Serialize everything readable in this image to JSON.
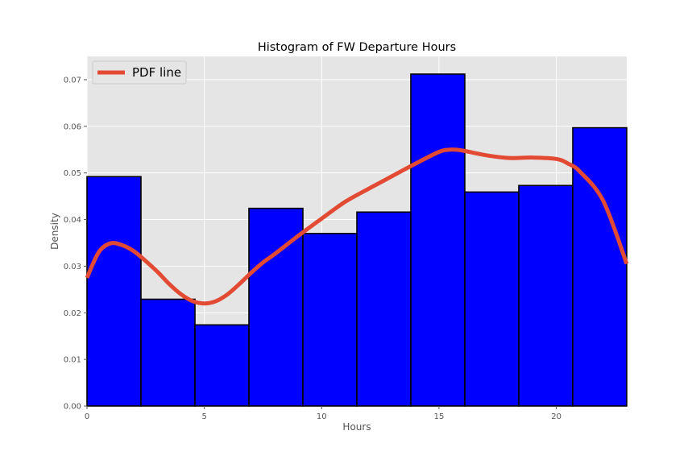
{
  "chart_data": {
    "type": "bar",
    "title": "Histogram of FW Departure Hours",
    "xlabel": "Hours",
    "ylabel": "Density",
    "xlim": [
      0,
      23
    ],
    "ylim": [
      0,
      0.075
    ],
    "xticks": [
      0,
      5,
      10,
      15,
      20
    ],
    "yticks": [
      0.0,
      0.01,
      0.02,
      0.03,
      0.04,
      0.05,
      0.06,
      0.07
    ],
    "xtick_labels": [
      "0",
      "5",
      "10",
      "15",
      "20"
    ],
    "ytick_labels": [
      "0.00",
      "0.01",
      "0.02",
      "0.03",
      "0.04",
      "0.05",
      "0.06",
      "0.07"
    ],
    "grid": true,
    "legend_position": "top-left",
    "bin_edges": [
      0,
      2.3,
      4.6,
      6.9,
      9.2,
      11.5,
      13.8,
      16.1,
      18.4,
      20.7,
      23.0
    ],
    "values": [
      0.0492,
      0.0229,
      0.0174,
      0.0424,
      0.037,
      0.0416,
      0.0712,
      0.0459,
      0.0473,
      0.0597
    ],
    "bar_color": "#0000ff",
    "bar_edge_color": "#000000",
    "series": [
      {
        "name": "PDF line",
        "type": "line",
        "color": "#e24a33",
        "x": [
          0,
          0.5,
          1,
          1.5,
          2,
          2.5,
          3,
          3.5,
          4,
          4.5,
          5,
          5.5,
          6,
          6.5,
          7,
          7.5,
          8,
          9,
          10,
          11,
          12,
          13,
          14,
          15,
          15.5,
          16,
          17,
          18,
          19,
          20,
          20.5,
          21,
          22,
          23
        ],
        "y": [
          0.0275,
          0.033,
          0.0349,
          0.0345,
          0.0332,
          0.0311,
          0.0288,
          0.0262,
          0.024,
          0.0225,
          0.022,
          0.0225,
          0.024,
          0.0262,
          0.0286,
          0.0308,
          0.0326,
          0.0365,
          0.0402,
          0.0438,
          0.0466,
          0.0493,
          0.052,
          0.0545,
          0.055,
          0.0548,
          0.0538,
          0.0532,
          0.0533,
          0.053,
          0.052,
          0.0503,
          0.044,
          0.0305
        ]
      }
    ],
    "legend": {
      "label": "PDF line"
    },
    "colors": {
      "plot_background": "#e5e5e5",
      "grid": "#ffffff",
      "figure_background": "#ffffff"
    }
  }
}
